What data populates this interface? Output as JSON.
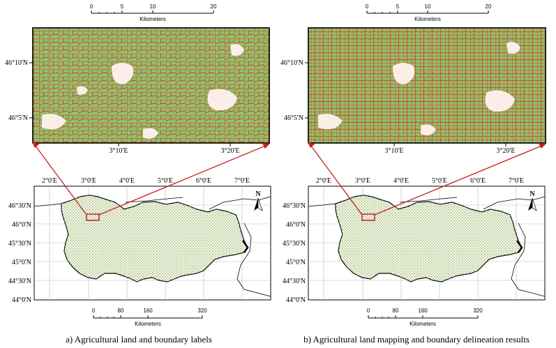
{
  "panels": [
    {
      "id": "a",
      "caption": "a) Agricultural land and boundary labels",
      "inset": {
        "scalebar_ticks": [
          "0",
          "5",
          "10",
          "20"
        ],
        "scalebar_unit": "Kilometers",
        "lat_labels": [
          "46°10'N",
          "46°5'N"
        ],
        "lon_labels": [
          "3°10'E",
          "3°20'E"
        ]
      },
      "overview": {
        "lon_labels": [
          "2°0'E",
          "3°0'E",
          "4°0'E",
          "5°0'E",
          "6°0'E",
          "7°0'E"
        ],
        "lat_labels": [
          "46°30'N",
          "46°0'N",
          "45°30'N",
          "45°0'N",
          "44°30'N",
          "44°0'N"
        ],
        "north_label": "N",
        "scalebar_ticks": [
          "0",
          "80",
          "160",
          "320"
        ],
        "scalebar_unit": "Kilometers"
      }
    },
    {
      "id": "b",
      "caption": "b) Agricultural land mapping and boundary delineation results",
      "inset": {
        "scalebar_ticks": [
          "0",
          "5",
          "10",
          "20"
        ],
        "scalebar_unit": "Kilometers",
        "lat_labels": [
          "46°10'N",
          "46°5'N"
        ],
        "lon_labels": [
          "3°10'E",
          "3°20'E"
        ]
      },
      "overview": {
        "lon_labels": [
          "2°0'E",
          "3°0'E",
          "4°0'E",
          "5°0'E",
          "6°0'E",
          "7°0'E"
        ],
        "lat_labels": [
          "46°30'N",
          "46°0'N",
          "45°30'N",
          "45°0'N",
          "44°30'N",
          "44°0'N"
        ],
        "north_label": "N",
        "scalebar_ticks": [
          "0",
          "80",
          "160",
          "320"
        ],
        "scalebar_unit": "Kilometers"
      }
    }
  ],
  "colors": {
    "field_fill": "#8fbf6e",
    "boundary": "#d8401a",
    "background": "#fbeee9",
    "overview_fill": "#f7f1e6",
    "overview_dots": "#7fbf6a",
    "arrow": "#c8201a"
  }
}
